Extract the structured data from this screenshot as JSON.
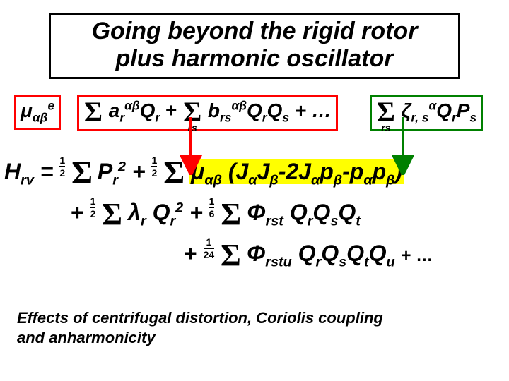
{
  "colors": {
    "mu_box": "#ff0000",
    "zeta_box": "#008000",
    "kinetic_highlight": "#ffff00",
    "kinetic_text": "#000000",
    "arrow_red": "#ff0000",
    "arrow_green": "#008000"
  },
  "title": {
    "line1": "Going beyond the rigid rotor",
    "line2": "plus harmonic oscillator"
  },
  "mu_expansion": {
    "lhs": "μαβe",
    "lhs_html": "μ<span class='sub'>αβ</span><span class='sup'>e</span>",
    "term1_html": "a<span class='sub'>r</span><span class='sup'>αβ</span>Q<span class='sub'>r</span>",
    "plus": " + ",
    "term2_lim": "rs",
    "term2_html": "b<span class='sub'>rs</span><span class='sup'>αβ</span>Q<span class='sub'>r</span>Q<span class='sub'>s</span> + …",
    "zeta_lim": "rs",
    "zeta_html": "ζ<span class='sub'>r, s</span><span class='sup'>α</span>Q<span class='sub'>r</span>P<span class='sub'>s</span>"
  },
  "hamiltonian": {
    "lhs_html": "H<span class='sub'>rv</span> =",
    "line1": {
      "frac1": {
        "n": "1",
        "d": "2"
      },
      "t1_html": "P<span class='sub'>r</span><span class='sup'>2</span> +",
      "frac2": {
        "n": "1",
        "d": "2"
      },
      "kin_html": "μ<span class='sub'>αβ</span> (J<span class='sub'>α</span>J<span class='sub'>β</span>-2J<span class='sub'>α</span>p<span class='sub'>β</span>-p<span class='sub'>α</span>p<span class='sub'>β</span>)"
    },
    "line2": {
      "plus": "+",
      "frac": {
        "n": "1",
        "d": "2"
      },
      "t_html": "λ<span class='sub'>r</span> Q<span class='sub'>r</span><span class='sup'>2</span> +",
      "frac2": {
        "n": "1",
        "d": "6"
      },
      "t2_html": "Φ<span class='sub'>rst</span> Q<span class='sub'>r</span>Q<span class='sub'>s</span>Q<span class='sub'>t</span>"
    },
    "line3": {
      "plus": "+",
      "frac": {
        "n": "1",
        "d": "24"
      },
      "t_html": "Φ<span class='sub'>rstu</span> Q<span class='sub'>r</span>Q<span class='sub'>s</span>Q<span class='sub'>t</span>Q<span class='sub'>u</span>",
      "tail": "  +  …"
    }
  },
  "caption": "Effects of centrifugal distortion, Coriolis coupling and anharmonicity"
}
